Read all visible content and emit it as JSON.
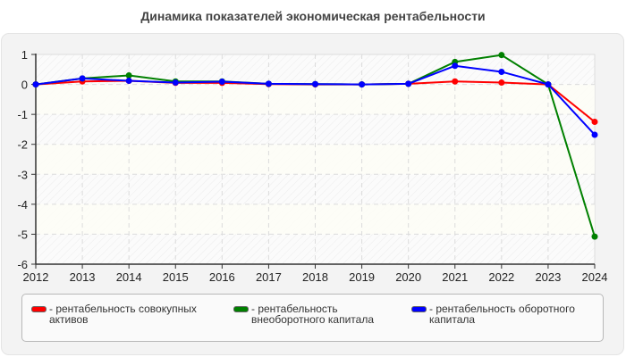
{
  "title": "Динамика показателей экономическая рентабельности",
  "legend": [
    {
      "label": "- рентабельность совокупных активов",
      "color": "#ff0000"
    },
    {
      "label": "- рентабельность внеоборотного капитала",
      "color": "#008000"
    },
    {
      "label": "- рентабельность оборотного капитала",
      "color": "#0000ff"
    }
  ],
  "chart_data": {
    "type": "line",
    "title": "Динамика показателей экономическая рентабельности",
    "xlabel": "",
    "ylabel": "",
    "x": [
      2012,
      2013,
      2014,
      2015,
      2016,
      2017,
      2018,
      2019,
      2020,
      2021,
      2022,
      2023,
      2024
    ],
    "ylim": [
      -6,
      1
    ],
    "yticks": [
      1,
      0,
      -1,
      -2,
      -3,
      -4,
      -5,
      -6
    ],
    "grid": true,
    "legend_position": "bottom",
    "series": [
      {
        "name": "рентабельность совокупных активов",
        "color": "#ff0000",
        "values": [
          0,
          0.1,
          0.12,
          0.05,
          0.05,
          0.01,
          0.0,
          0.0,
          0.02,
          0.1,
          0.06,
          0.0,
          -1.25
        ]
      },
      {
        "name": "рентабельность внеоборотного капитала",
        "color": "#008000",
        "values": [
          0,
          0.2,
          0.3,
          0.1,
          0.1,
          0.02,
          0.01,
          0.0,
          0.02,
          0.75,
          0.98,
          0.0,
          -5.08
        ]
      },
      {
        "name": "рентабельность оборотного капитала",
        "color": "#0000ff",
        "values": [
          0,
          0.2,
          0.12,
          0.06,
          0.09,
          0.02,
          0.01,
          0.0,
          0.02,
          0.62,
          0.42,
          0.0,
          -1.68
        ]
      }
    ]
  }
}
